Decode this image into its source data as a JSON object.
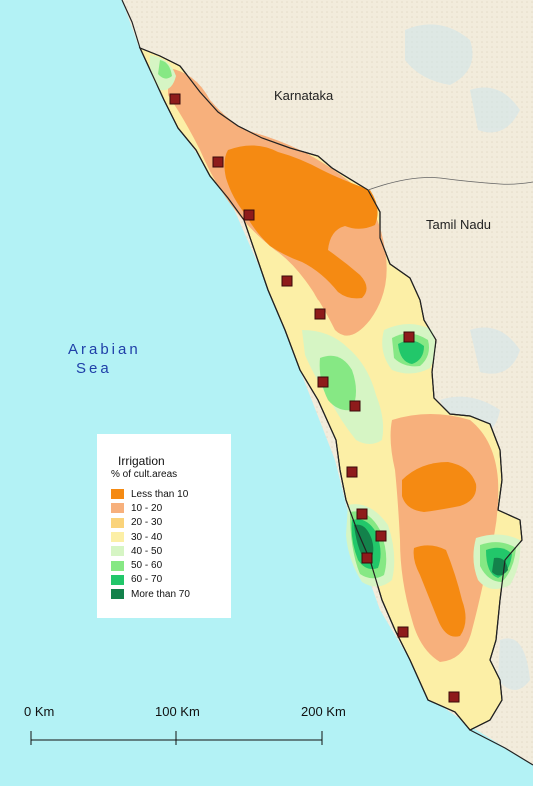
{
  "labels": {
    "sea_line1": "Arabian",
    "sea_line2": "Sea",
    "karnataka": "Karnataka",
    "tamil_nadu": "Tamil Nadu"
  },
  "legend": {
    "title": "Irrigation",
    "subtitle": "% of cult.areas",
    "classes": [
      {
        "label": "Less than 10",
        "color": "#f58a12"
      },
      {
        "label": "10 - 20",
        "color": "#f7b07c"
      },
      {
        "label": "20 - 30",
        "color": "#fad37a"
      },
      {
        "label": "30 - 40",
        "color": "#fcefa6"
      },
      {
        "label": "40 - 50",
        "color": "#d6f5c4"
      },
      {
        "label": "50 - 60",
        "color": "#86e884"
      },
      {
        "label": "60 - 70",
        "color": "#22c76a"
      },
      {
        "label": "More than 70",
        "color": "#13824b"
      }
    ]
  },
  "scale_bar": {
    "ticks": [
      "0 Km",
      "100 Km",
      "200 Km"
    ]
  },
  "colors": {
    "sea": "#b3f2f5",
    "land": "#f3eee0",
    "marker": "#8e1b1b",
    "boundary": "#222222"
  }
}
